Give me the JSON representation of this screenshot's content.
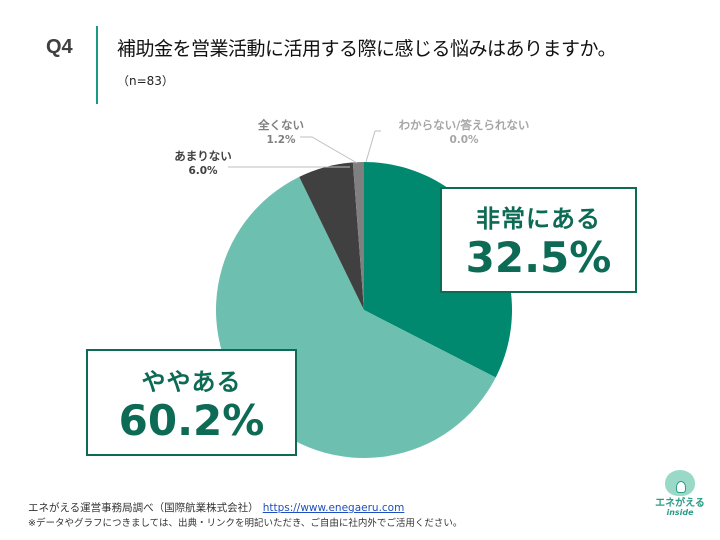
{
  "header": {
    "question_number": "Q4",
    "title": "補助金を営業活動に活用する際に感じる悩みはありますか。",
    "sample_size": "（n=83）"
  },
  "chart_data": {
    "type": "pie",
    "title": "補助金を営業活動に活用する際に感じる悩みはありますか。",
    "n": 83,
    "categories": [
      "非常にある",
      "ややある",
      "あまりない",
      "全くない",
      "わからない/答えられない"
    ],
    "values": [
      32.5,
      60.2,
      6.0,
      1.2,
      0.0
    ],
    "labels": [
      "32.5%",
      "60.2%",
      "6.0%",
      "1.2%",
      "0.0%"
    ],
    "colors": [
      "#00896f",
      "#6dbfb0",
      "#404040",
      "#808080",
      "#bfbfbf"
    ],
    "start_angle_deg": 0,
    "direction": "clockwise",
    "legend": "none (data labels with leader lines and callout boxes)"
  },
  "callouts": {
    "very": {
      "category": "非常にある",
      "value": "32.5%"
    },
    "somewhat": {
      "category": "ややある",
      "value": "60.2%"
    }
  },
  "outer_labels": {
    "rarely": {
      "category": "あまりない",
      "value": "6.0%"
    },
    "none": {
      "category": "全くない",
      "value": "1.2%"
    },
    "unknown": {
      "category": "わからない/答えられない",
      "value": "0.0%"
    }
  },
  "footer": {
    "source": "エネがえる運営事務局調べ（国際航業株式会社）",
    "url": "https://www.enegaeru.com",
    "note": "※データやグラフにつきましては、出典・リンクを明記いただき、ご自由に社内外でご活用ください。"
  },
  "logo": {
    "brand": "エネがえる",
    "sub": "inside"
  }
}
